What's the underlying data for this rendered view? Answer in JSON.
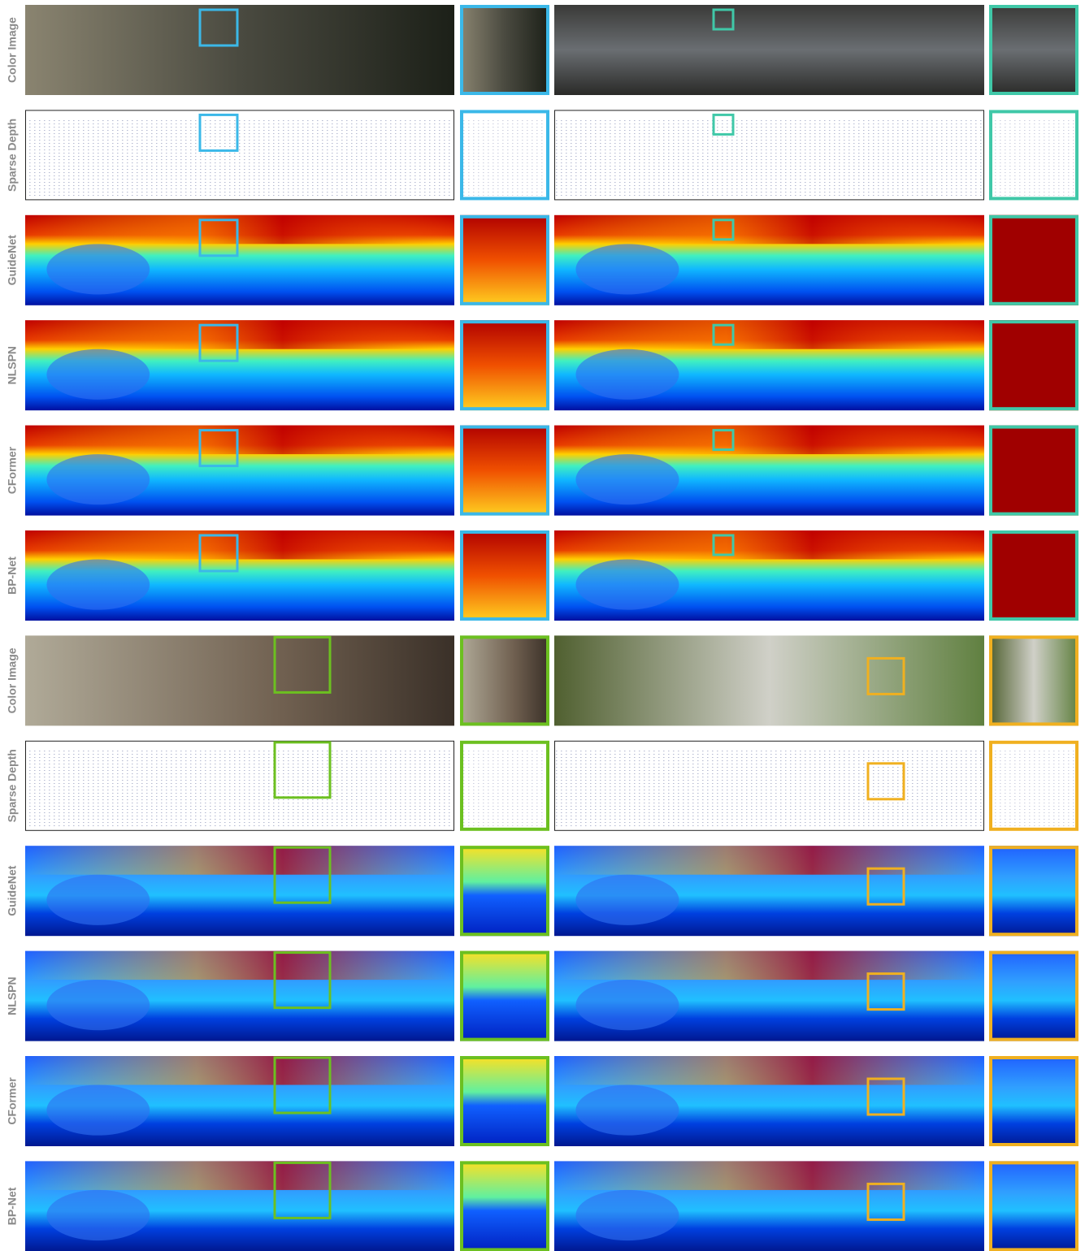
{
  "rows": [
    "Color Image",
    "Sparse Depth",
    "GuideNet",
    "NLSPN",
    "CFormer",
    "BP-Net",
    "Color Image",
    "Sparse Depth",
    "GuideNet",
    "NLSPN",
    "CFormer",
    "BP-Net"
  ]
}
